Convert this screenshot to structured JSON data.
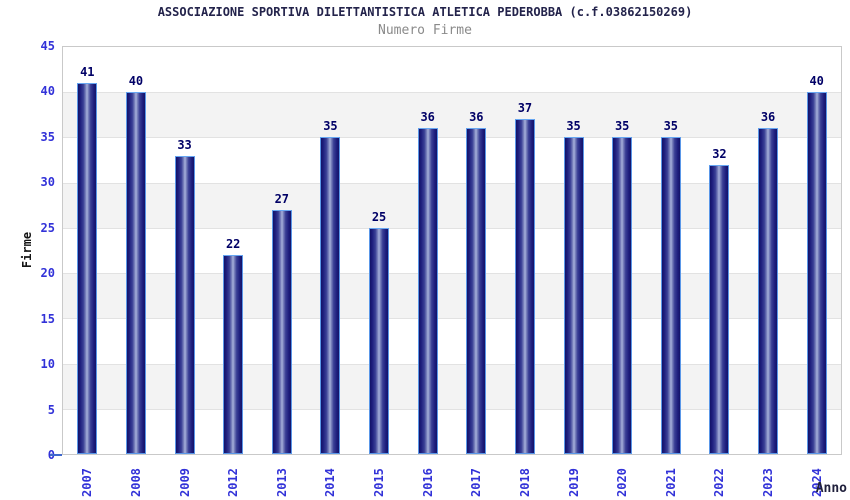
{
  "chart_data": {
    "type": "bar",
    "title": "ASSOCIAZIONE SPORTIVA DILETTANTISTICA ATLETICA PEDEROBBA (c.f.03862150269)",
    "subtitle": "Numero Firme",
    "xlabel": "Anno",
    "ylabel": "Firme",
    "categories": [
      "2007",
      "2008",
      "2009",
      "2012",
      "2013",
      "2014",
      "2015",
      "2016",
      "2017",
      "2018",
      "2019",
      "2020",
      "2021",
      "2022",
      "2023",
      "2024"
    ],
    "values": [
      41,
      40,
      33,
      22,
      27,
      35,
      25,
      36,
      36,
      37,
      35,
      35,
      35,
      32,
      36,
      40
    ],
    "ylim": [
      0,
      45
    ],
    "ytick_step": 5,
    "yticks_top_to_bottom": [
      45,
      40,
      35,
      30,
      25,
      20,
      15,
      10,
      5,
      0
    ],
    "grid": "horizontal alternating bands every 5 units, light gridlines at band boundaries",
    "legend_position": "none",
    "colors": {
      "title": "#23234b",
      "subtitle": "#8a8a8a",
      "tick_labels": "#3232d8",
      "value_labels": "#000066",
      "bar_dark": "#131368",
      "bar_light_center": "#aab3de",
      "bar_border": "#5a97e8",
      "band_gray": "#f3f3f3",
      "grid_line": "#e2e2e2",
      "plot_border": "#c9c9c9",
      "background": "#ffffff"
    }
  }
}
